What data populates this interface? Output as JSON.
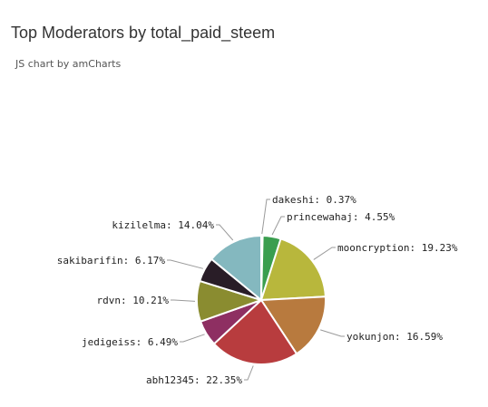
{
  "title": "Top Moderators by total_paid_steem",
  "credit": "JS chart by amCharts",
  "chart_data": {
    "type": "pie",
    "title": "Top Moderators by total_paid_steem",
    "slices": [
      {
        "name": "dakeshi",
        "value": 0.37,
        "label": "dakeshi: 0.37%",
        "color": "#67b7dc"
      },
      {
        "name": "princewahaj",
        "value": 4.55,
        "label": "princewahaj: 4.55%",
        "color": "#3a9e4f"
      },
      {
        "name": "mooncryption",
        "value": 19.23,
        "label": "mooncryption: 19.23%",
        "color": "#b8b73c"
      },
      {
        "name": "yokunjon",
        "value": 16.59,
        "label": "yokunjon: 16.59%",
        "color": "#b87a3e"
      },
      {
        "name": "abh12345",
        "value": 22.35,
        "label": "abh12345: 22.35%",
        "color": "#b83c3e"
      },
      {
        "name": "jedigeiss",
        "value": 6.49,
        "label": "jedigeiss: 6.49%",
        "color": "#8e2f62"
      },
      {
        "name": "rdvn",
        "value": 10.21,
        "label": "rdvn: 10.21%",
        "color": "#8a8c30"
      },
      {
        "name": "sakibarifin",
        "value": 6.17,
        "label": "sakibarifin: 6.17%",
        "color": "#291d27"
      },
      {
        "name": "kizilelma",
        "value": 14.04,
        "label": "kizilelma: 14.04%",
        "color": "#84b8bf"
      }
    ]
  }
}
